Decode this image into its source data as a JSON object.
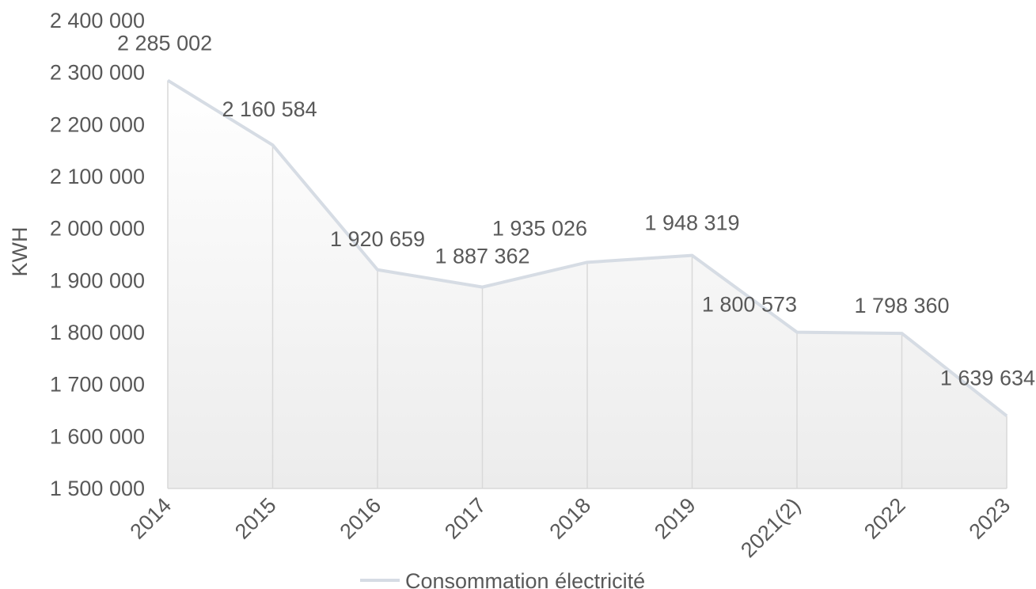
{
  "chart_data": {
    "type": "area",
    "categories": [
      "2014",
      "2015",
      "2016",
      "2017",
      "2018",
      "2019",
      "2021(2)",
      "2022",
      "2023"
    ],
    "series": [
      {
        "name": "Consommation électricité",
        "values": [
          2285002,
          2160584,
          1920659,
          1887362,
          1935026,
          1948319,
          1800573,
          1798360,
          1639634
        ],
        "labels": [
          "2 285 002",
          "2 160 584",
          "1 920 659",
          "1 887 362",
          "1 935 026",
          "1 948 319",
          "1 800 573",
          "1 798 360",
          "1 639 634"
        ],
        "color": "#d6dce4"
      }
    ],
    "title": "",
    "xlabel": "",
    "ylabel": "KWH",
    "ylim": [
      1500000,
      2400000
    ],
    "yticks": [
      1500000,
      1600000,
      1700000,
      1800000,
      1900000,
      2000000,
      2100000,
      2200000,
      2300000,
      2400000
    ],
    "ytick_labels": [
      "1 500 000",
      "1 600 000",
      "1 700 000",
      "1 800 000",
      "1 900 000",
      "2 000 000",
      "2 100 000",
      "2 200 000",
      "2 300 000",
      "2 400 000"
    ],
    "grid": false,
    "legend": "bottom",
    "fill": "gradient light gray to white"
  }
}
